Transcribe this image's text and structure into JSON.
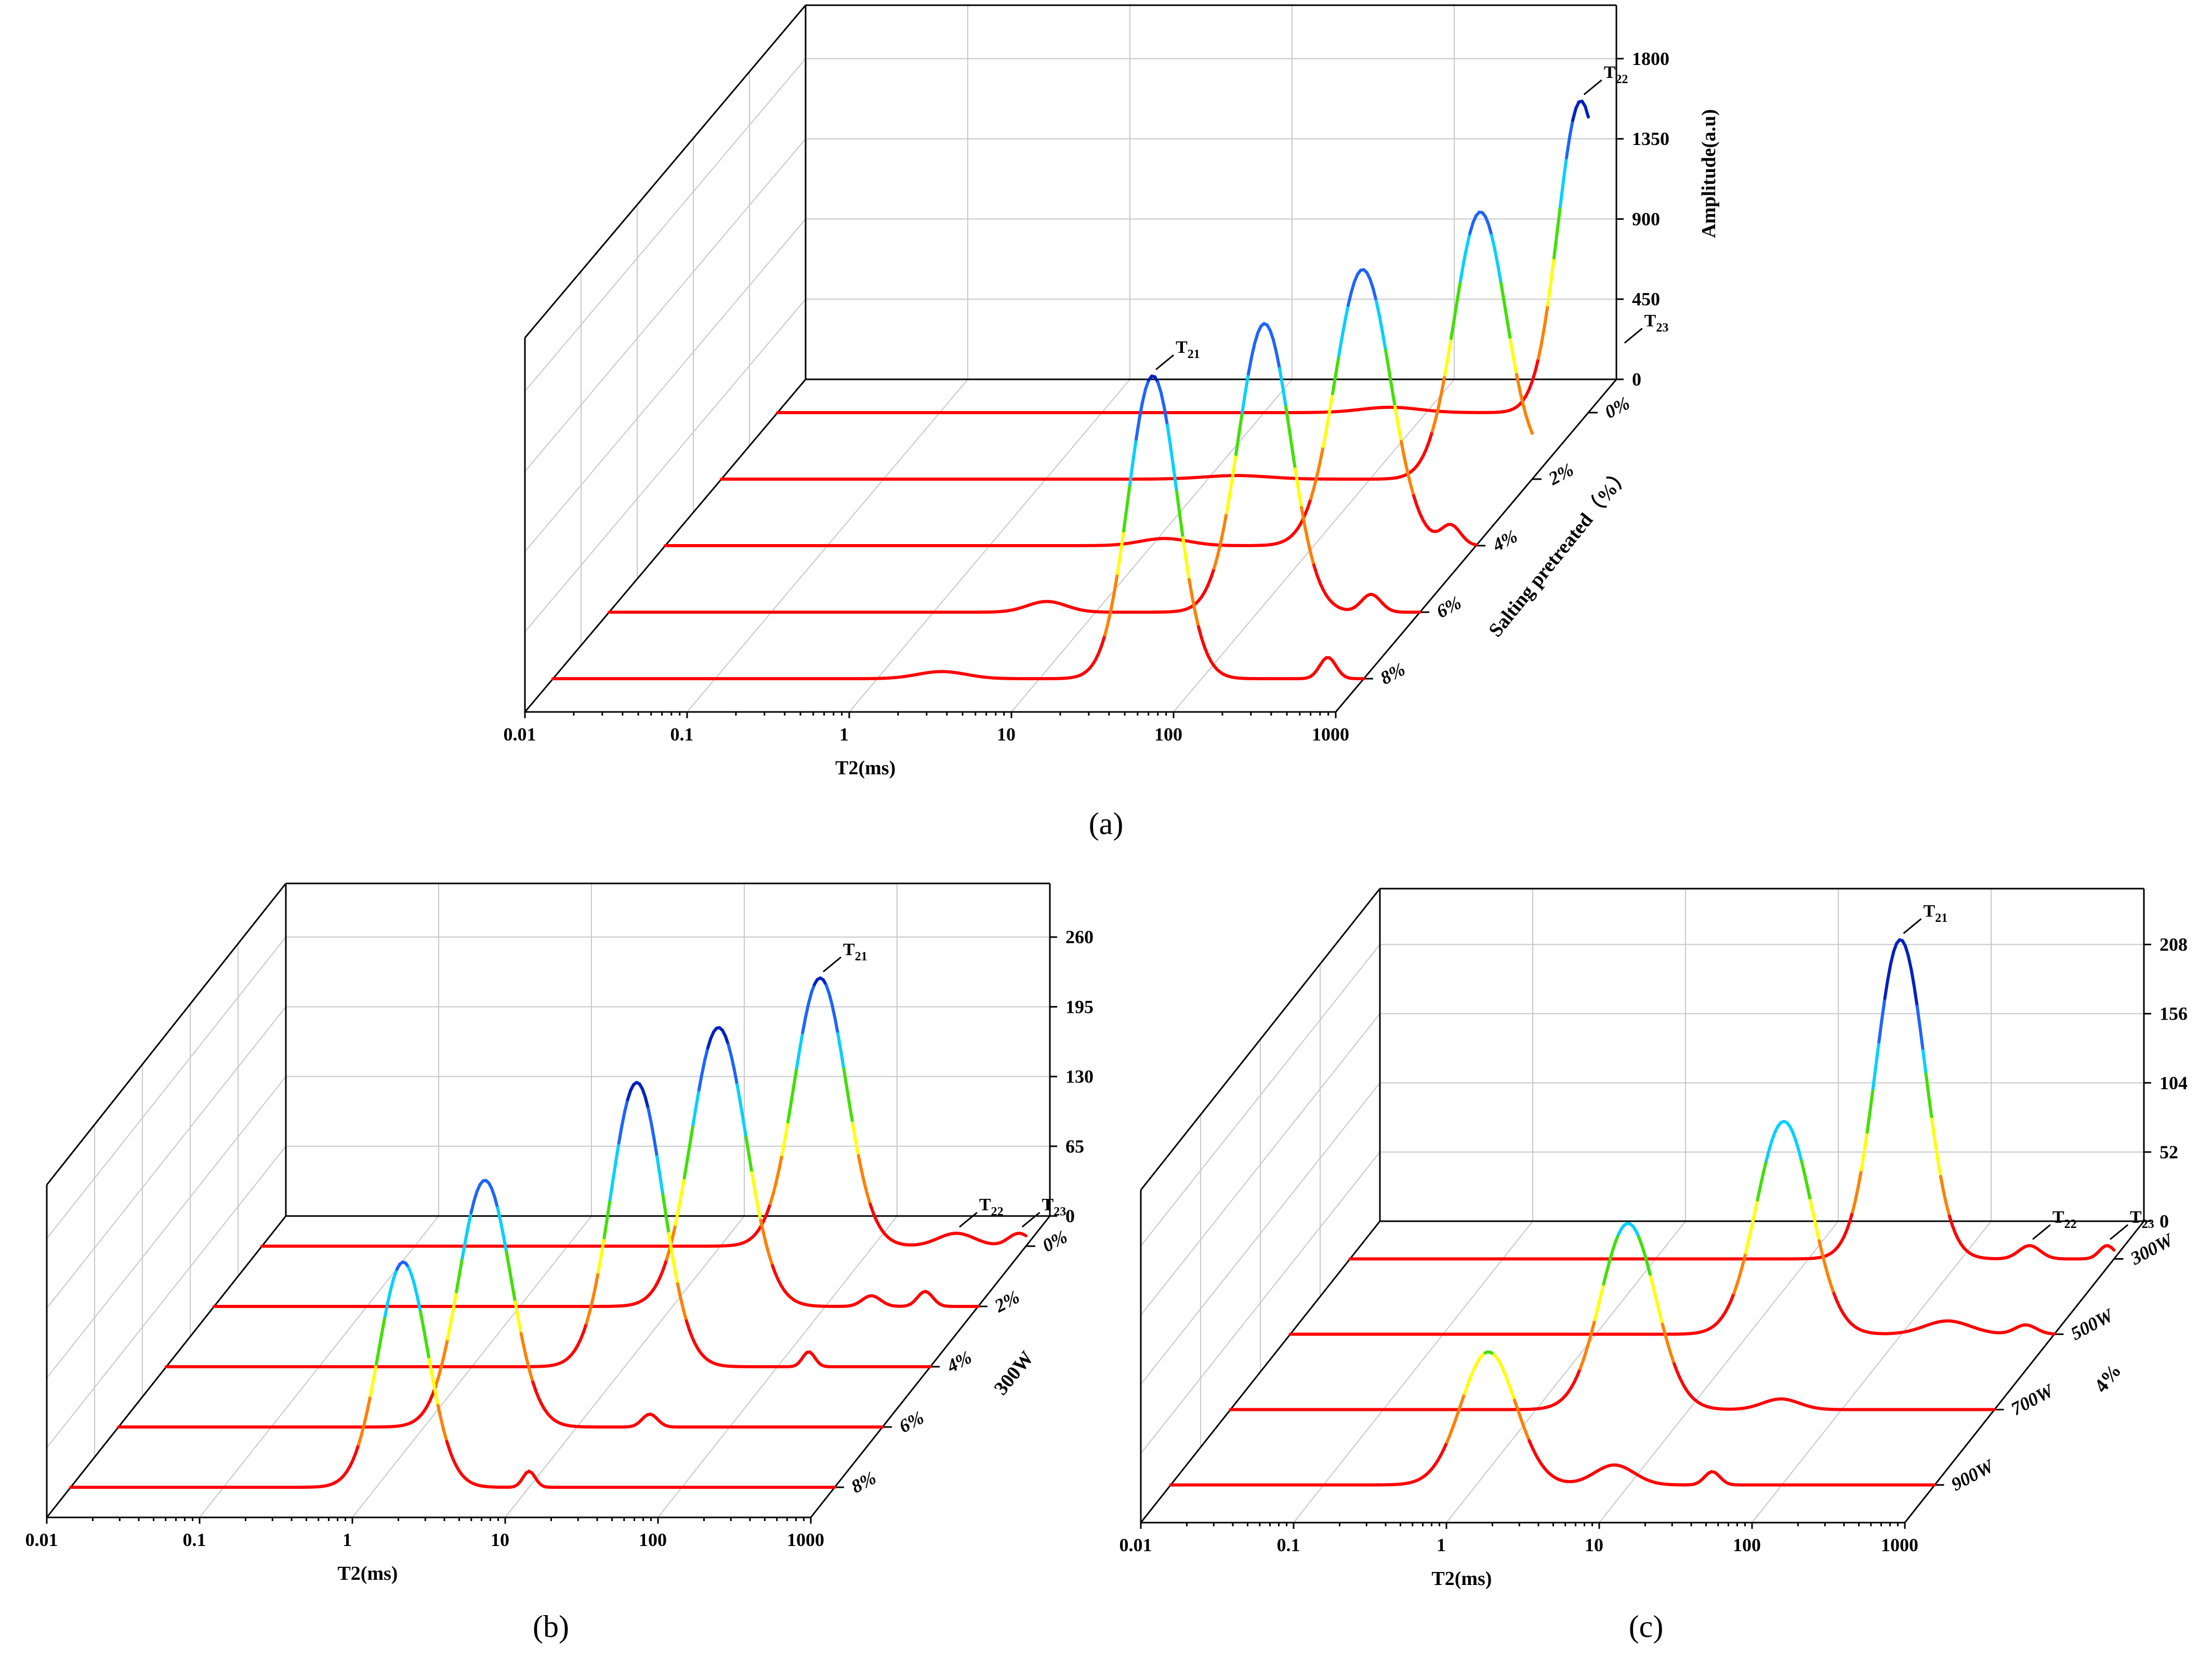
{
  "chart_data": [
    {
      "id": "a",
      "type": "line",
      "panel_label": "(a)",
      "xlabel": "T2(ms)",
      "x_scale": "log",
      "x_ticks": [
        "0.01",
        "0.1",
        "1",
        "10",
        "100",
        "1000"
      ],
      "ylabel": "Amplitude(a.u)",
      "ylim": [
        0,
        2100
      ],
      "y_ticks": [
        "0",
        "450",
        "900",
        "1350",
        "1800"
      ],
      "depth_label": "Salting pretreated（%）",
      "series": [
        {
          "name": "0%",
          "peaks": [
            {
              "t2": 60,
              "amp": 30,
              "w": 0.18
            },
            {
              "t2": 900,
              "amp": 1750,
              "w": 0.14
            },
            {
              "t2": 1500,
              "amp": 0,
              "w": 0.1
            },
            {
              "t2": 1900,
              "amp": 0,
              "w": 0.1
            }
          ]
        },
        {
          "name": "2%",
          "peaks": [
            {
              "t2": 15,
              "amp": 20,
              "w": 0.2
            },
            {
              "t2": 480,
              "amp": 1500,
              "w": 0.16
            },
            {
              "t2": 1300,
              "amp": 80,
              "w": 0.12
            }
          ]
        },
        {
          "name": "4%",
          "peaks": [
            {
              "t2": 12,
              "amp": 40,
              "w": 0.15
            },
            {
              "t2": 200,
              "amp": 1550,
              "w": 0.17
            },
            {
              "t2": 700,
              "amp": 110,
              "w": 0.06
            }
          ]
        },
        {
          "name": "6%",
          "peaks": [
            {
              "t2": 5,
              "amp": 60,
              "w": 0.12
            },
            {
              "t2": 110,
              "amp": 1620,
              "w": 0.16
            },
            {
              "t2": 500,
              "amp": 100,
              "w": 0.06
            }
          ]
        },
        {
          "name": "8%",
          "peaks": [
            {
              "t2": 2.5,
              "amp": 40,
              "w": 0.15
            },
            {
              "t2": 50,
              "amp": 1700,
              "w": 0.15
            },
            {
              "t2": 600,
              "amp": 120,
              "w": 0.05
            }
          ]
        }
      ],
      "annotations": [
        {
          "label": "T",
          "sub": "22",
          "series": 0,
          "t2": 900
        },
        {
          "label": "T",
          "sub": "21",
          "series": 4,
          "t2": 50
        },
        {
          "label": "T",
          "sub": "23",
          "series": 0,
          "t2": 1600
        }
      ]
    },
    {
      "id": "b",
      "type": "line",
      "panel_label": "(b)",
      "xlabel": "T2(ms)",
      "x_scale": "log",
      "x_ticks": [
        "0.01",
        "0.1",
        "1",
        "10",
        "100",
        "1000"
      ],
      "ylabel": "",
      "ylim": [
        0,
        310
      ],
      "y_ticks": [
        "0",
        "65",
        "130",
        "195",
        "260"
      ],
      "depth_label": "300W",
      "series": [
        {
          "name": "0%",
          "peaks": [
            {
              "t2": 45,
              "amp": 250,
              "w": 0.17
            },
            {
              "t2": 350,
              "amp": 12,
              "w": 0.12
            },
            {
              "t2": 900,
              "amp": 12,
              "w": 0.07
            }
          ]
        },
        {
          "name": "2%",
          "peaks": [
            {
              "t2": 20,
              "amp": 260,
              "w": 0.18
            },
            {
              "t2": 200,
              "amp": 10,
              "w": 0.06
            },
            {
              "t2": 450,
              "amp": 14,
              "w": 0.05
            }
          ]
        },
        {
          "name": "4%",
          "peaks": [
            {
              "t2": 12,
              "amp": 265,
              "w": 0.17
            },
            {
              "t2": 160,
              "amp": 14,
              "w": 0.04
            }
          ]
        },
        {
          "name": "6%",
          "peaks": [
            {
              "t2": 2.5,
              "amp": 230,
              "w": 0.17
            },
            {
              "t2": 30,
              "amp": 12,
              "w": 0.05
            }
          ]
        },
        {
          "name": "8%",
          "peaks": [
            {
              "t2": 1.5,
              "amp": 210,
              "w": 0.16
            },
            {
              "t2": 10,
              "amp": 15,
              "w": 0.04
            }
          ]
        }
      ],
      "annotations": [
        {
          "label": "T",
          "sub": "21",
          "series": 0,
          "t2": 45
        },
        {
          "label": "T",
          "sub": "22",
          "series": 0,
          "t2": 350
        },
        {
          "label": "T",
          "sub": "23",
          "series": 0,
          "t2": 900
        }
      ]
    },
    {
      "id": "c",
      "type": "line",
      "panel_label": "(c)",
      "xlabel": "T2(ms)",
      "x_scale": "log",
      "x_ticks": [
        "0.01",
        "0.1",
        "1",
        "10",
        "100",
        "1000"
      ],
      "ylabel": "",
      "ylim": [
        0,
        250
      ],
      "y_ticks": [
        "0",
        "52",
        "104",
        "156",
        "208"
      ],
      "depth_label": "4%",
      "series": [
        {
          "name": "300W",
          "peaks": [
            {
              "t2": 40,
              "amp": 240,
              "w": 0.16
            },
            {
              "t2": 280,
              "amp": 10,
              "w": 0.07
            },
            {
              "t2": 900,
              "amp": 10,
              "w": 0.05
            }
          ]
        },
        {
          "name": "500W",
          "peaks": [
            {
              "t2": 17,
              "amp": 160,
              "w": 0.18
            },
            {
              "t2": 200,
              "amp": 10,
              "w": 0.15
            },
            {
              "t2": 650,
              "amp": 7,
              "w": 0.07
            }
          ]
        },
        {
          "name": "700W",
          "peaks": [
            {
              "t2": 4,
              "amp": 140,
              "w": 0.18
            },
            {
              "t2": 40,
              "amp": 8,
              "w": 0.12
            }
          ]
        },
        {
          "name": "900W",
          "peaks": [
            {
              "t2": 1.2,
              "amp": 100,
              "w": 0.18
            },
            {
              "t2": 8,
              "amp": 15,
              "w": 0.13
            },
            {
              "t2": 35,
              "amp": 10,
              "w": 0.05
            }
          ]
        }
      ],
      "annotations": [
        {
          "label": "T",
          "sub": "21",
          "series": 0,
          "t2": 40
        },
        {
          "label": "T",
          "sub": "22",
          "series": 0,
          "t2": 280
        },
        {
          "label": "T",
          "sub": "23",
          "series": 0,
          "t2": 900
        }
      ]
    }
  ],
  "colors": {
    "axis": "#000000",
    "grid": "#c8c8c8",
    "ramp": [
      "#ff0000",
      "#ff8000",
      "#ffff00",
      "#40e000",
      "#00d0ff",
      "#1e64ff",
      "#0020c0"
    ]
  }
}
